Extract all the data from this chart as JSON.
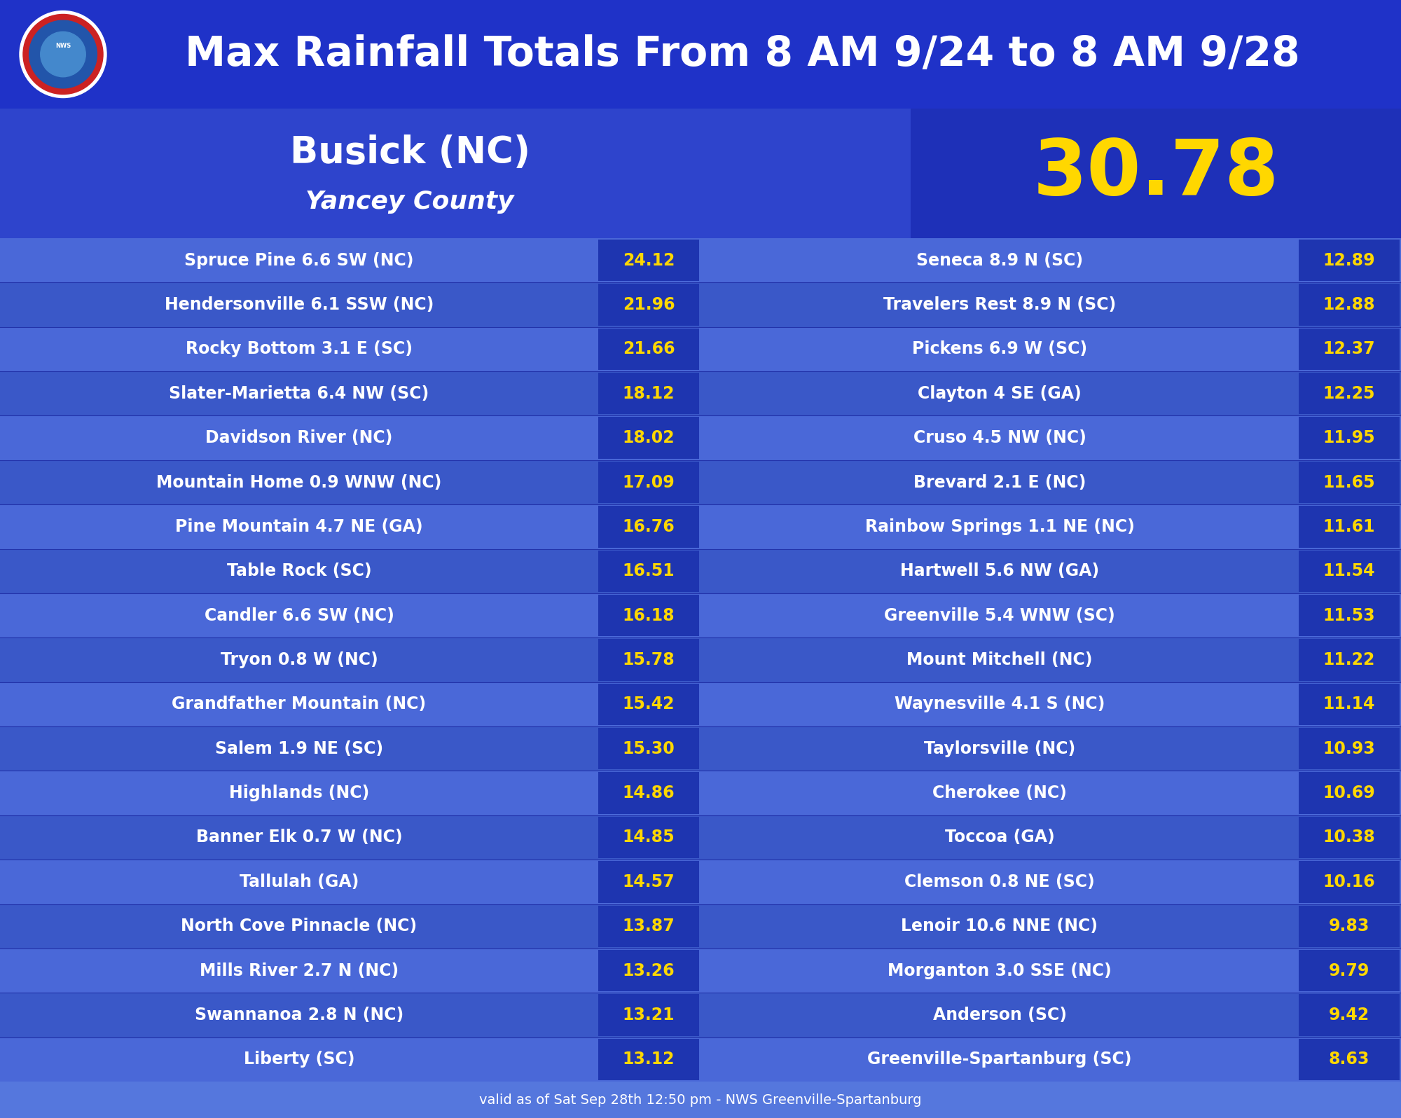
{
  "title": "Max Rainfall Totals From 8 AM 9/24 to 8 AM 9/28",
  "max_location": "Busick (NC)",
  "max_county": "Yancey County",
  "max_value": "30.78",
  "footer": "valid as of Sat Sep 28th 12:50 pm - NWS Greenville-Spartanburg",
  "left_data": [
    [
      "Spruce Pine 6.6 SW (NC)",
      "24.12"
    ],
    [
      "Hendersonville 6.1 SSW (NC)",
      "21.96"
    ],
    [
      "Rocky Bottom 3.1 E (SC)",
      "21.66"
    ],
    [
      "Slater-Marietta 6.4 NW (SC)",
      "18.12"
    ],
    [
      "Davidson River (NC)",
      "18.02"
    ],
    [
      "Mountain Home 0.9 WNW (NC)",
      "17.09"
    ],
    [
      "Pine Mountain 4.7 NE (GA)",
      "16.76"
    ],
    [
      "Table Rock (SC)",
      "16.51"
    ],
    [
      "Candler 6.6 SW (NC)",
      "16.18"
    ],
    [
      "Tryon 0.8 W (NC)",
      "15.78"
    ],
    [
      "Grandfather Mountain (NC)",
      "15.42"
    ],
    [
      "Salem 1.9 NE (SC)",
      "15.30"
    ],
    [
      "Highlands (NC)",
      "14.86"
    ],
    [
      "Banner Elk 0.7 W (NC)",
      "14.85"
    ],
    [
      "Tallulah (GA)",
      "14.57"
    ],
    [
      "North Cove Pinnacle (NC)",
      "13.87"
    ],
    [
      "Mills River 2.7 N (NC)",
      "13.26"
    ],
    [
      "Swannanoa 2.8 N (NC)",
      "13.21"
    ],
    [
      "Liberty (SC)",
      "13.12"
    ]
  ],
  "right_data": [
    [
      "Seneca 8.9 N (SC)",
      "12.89"
    ],
    [
      "Travelers Rest 8.9 N (SC)",
      "12.88"
    ],
    [
      "Pickens 6.9 W (SC)",
      "12.37"
    ],
    [
      "Clayton 4 SE (GA)",
      "12.25"
    ],
    [
      "Cruso 4.5 NW (NC)",
      "11.95"
    ],
    [
      "Brevard 2.1 E (NC)",
      "11.65"
    ],
    [
      "Rainbow Springs 1.1 NE (NC)",
      "11.61"
    ],
    [
      "Hartwell 5.6 NW (GA)",
      "11.54"
    ],
    [
      "Greenville 5.4 WNW (SC)",
      "11.53"
    ],
    [
      "Mount Mitchell (NC)",
      "11.22"
    ],
    [
      "Waynesville 4.1 S (NC)",
      "11.14"
    ],
    [
      "Taylorsville (NC)",
      "10.93"
    ],
    [
      "Cherokee (NC)",
      "10.69"
    ],
    [
      "Toccoa (GA)",
      "10.38"
    ],
    [
      "Clemson 0.8 NE (SC)",
      "10.16"
    ],
    [
      "Lenoir 10.6 NNE (NC)",
      "9.83"
    ],
    [
      "Morganton 3.0 SSE (NC)",
      "9.79"
    ],
    [
      "Anderson (SC)",
      "9.42"
    ],
    [
      "Greenville-Spartanburg (SC)",
      "8.63"
    ]
  ],
  "header_bg": "#1f32c8",
  "max_row_bg_left": "#2e44cc",
  "max_row_bg_right": "#1e30b8",
  "row_even": "#4a68d8",
  "row_odd": "#3a58c8",
  "val_box_bg": "#1e35b0",
  "value_gold": "#ffd700",
  "text_white": "#ffffff",
  "footer_bg": "#5577dd",
  "bg_main": "#2233aa"
}
